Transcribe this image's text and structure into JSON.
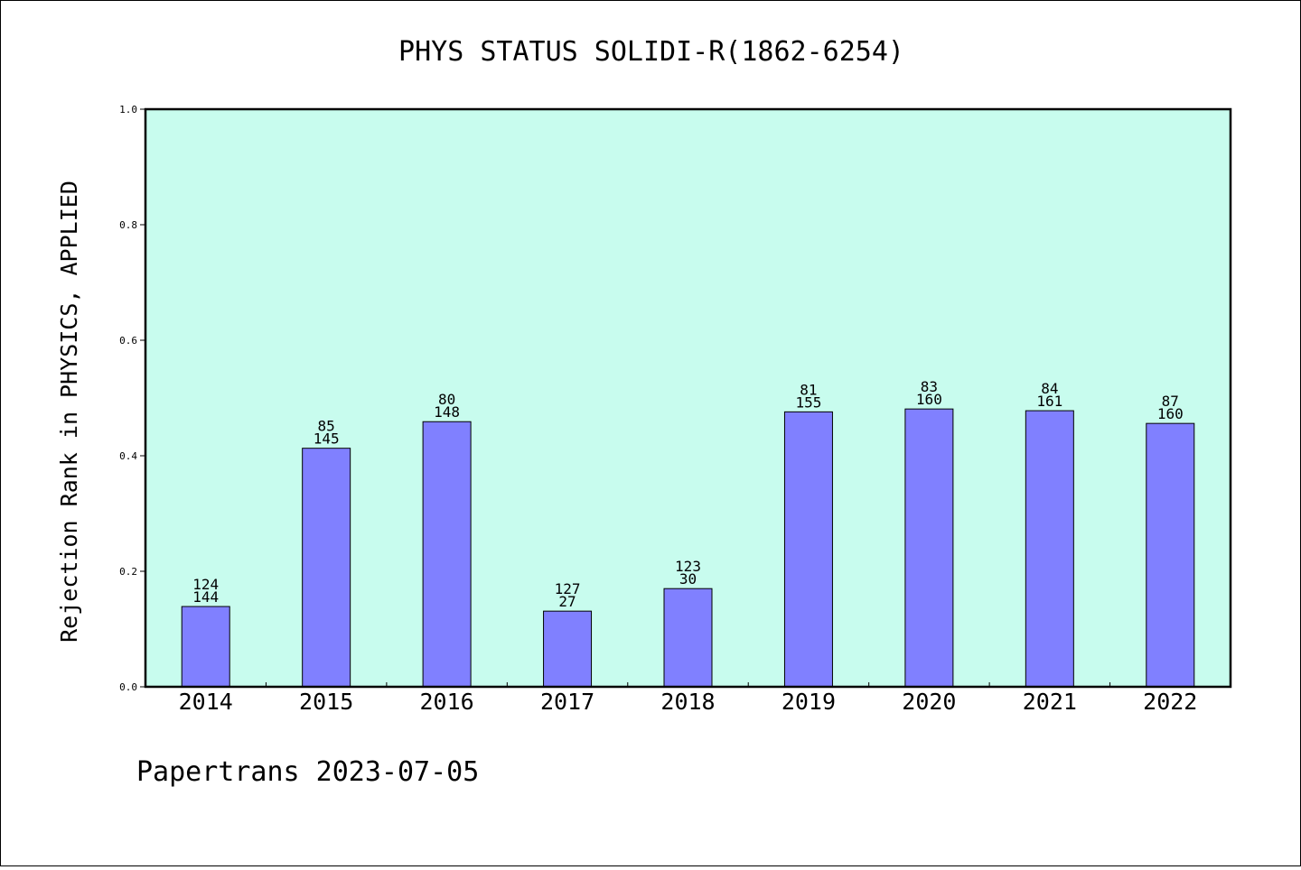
{
  "chart_data": {
    "type": "bar",
    "title": "PHYS STATUS SOLIDI-R(1862-6254)",
    "xlabel": "",
    "ylabel": "Rejection Rank in PHYSICS, APPLIED",
    "ylim": [
      0,
      1.0
    ],
    "yticks": [
      "0.0",
      "0.2",
      "0.4",
      "0.6",
      "0.8",
      "1.0"
    ],
    "grid": false,
    "categories": [
      "2014",
      "2015",
      "2016",
      "2017",
      "2018",
      "2019",
      "2020",
      "2021",
      "2022"
    ],
    "values": [
      0.139,
      0.413,
      0.459,
      0.131,
      0.17,
      0.476,
      0.481,
      0.478,
      0.456
    ],
    "labels_top": [
      "124",
      "85",
      "80",
      "127",
      "123",
      "81",
      "83",
      "84",
      "87"
    ],
    "labels_bottom": [
      "144",
      "145",
      "148",
      "27",
      "30",
      "155",
      "160",
      "161",
      "160"
    ],
    "colors": {
      "plot_background": "#c8fcee",
      "bar_fill": "#8080ff",
      "bar_stroke": "#000000"
    }
  },
  "footer": "Papertrans 2023-07-05"
}
